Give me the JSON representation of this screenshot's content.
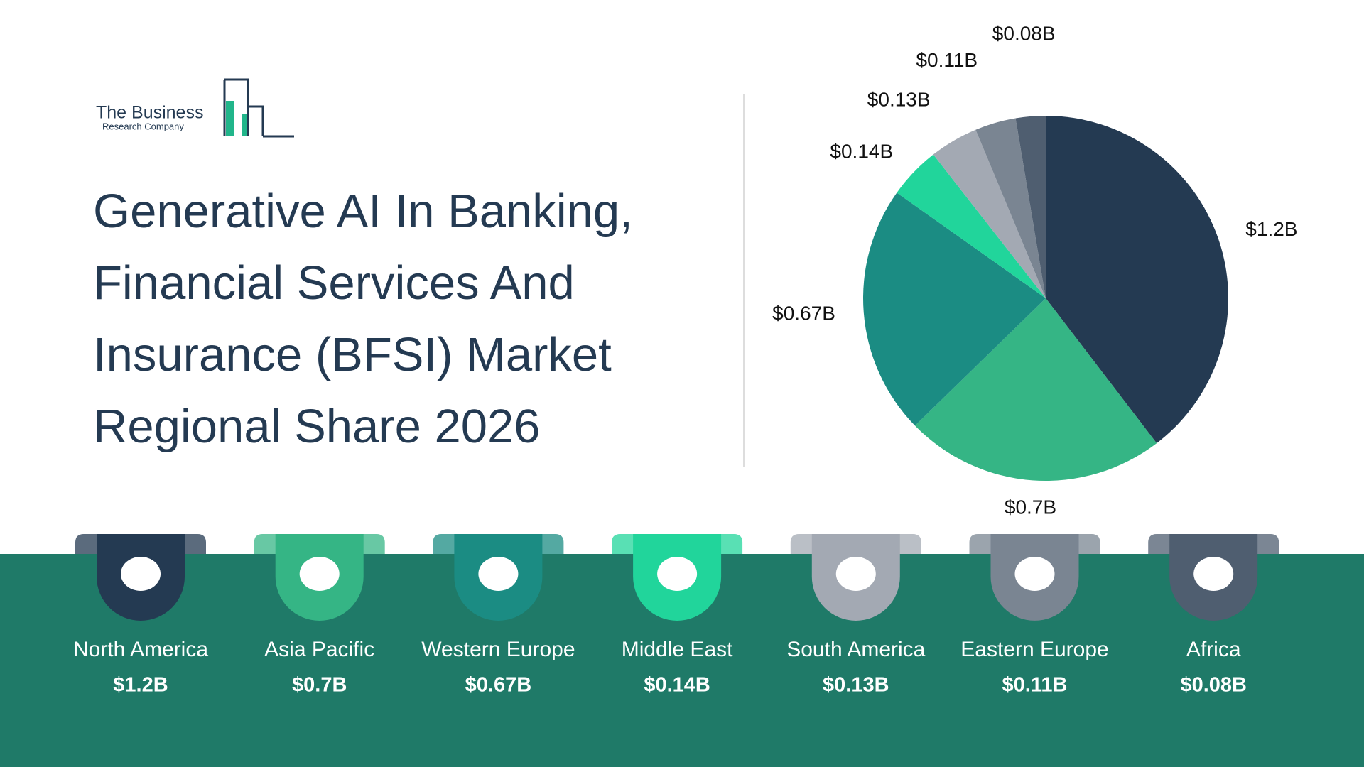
{
  "logo": {
    "line1": "The Business",
    "line2": "Research Company"
  },
  "chart_data": {
    "type": "pie",
    "title": "Generative AI In Banking, Financial Services And Insurance (BFSI) Market Regional Share 2026",
    "categories": [
      "North America",
      "Asia Pacific",
      "Western Europe",
      "Middle East",
      "South America",
      "Eastern Europe",
      "Africa"
    ],
    "values": [
      1.2,
      0.7,
      0.67,
      0.14,
      0.13,
      0.11,
      0.08
    ],
    "value_labels": [
      "$1.2B",
      "$0.7B",
      "$0.67B",
      "$0.14B",
      "$0.13B",
      "$0.11B",
      "$0.08B"
    ],
    "colors": [
      "#243a52",
      "#35b585",
      "#1b8c83",
      "#21d59b",
      "#a3a9b3",
      "#7a8592",
      "#4f5e70"
    ]
  }
}
